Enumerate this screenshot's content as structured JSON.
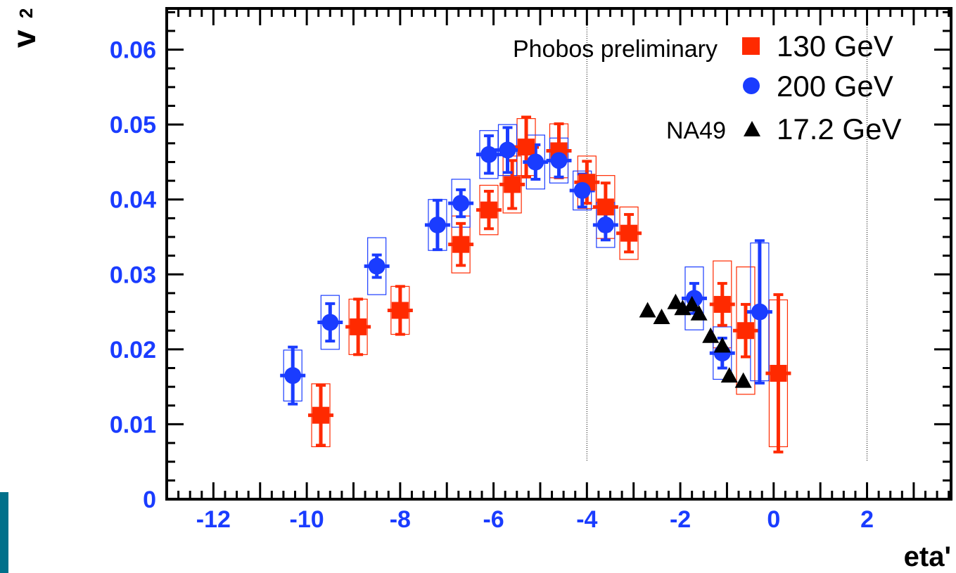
{
  "colors": {
    "series_130": "#ff2a00",
    "series_200": "#1a3cff",
    "series_na49": "#000000",
    "tick_labels": "#1a3cff",
    "side_bar": "#00708a"
  },
  "chart_data": {
    "type": "scatter",
    "xlabel": "eta'",
    "ylabel_main": "v",
    "ylabel_sub": "2",
    "xlim": [
      -13.0,
      3.8
    ],
    "ylim": [
      0,
      0.0655
    ],
    "x_ticks": [
      -12,
      -10,
      -8,
      -6,
      -4,
      -2,
      0,
      2
    ],
    "x_tick_labels": [
      "-12",
      "-10",
      "-8",
      "-6",
      "-4",
      "-2",
      "0",
      "2"
    ],
    "y_ticks": [
      0,
      0.01,
      0.02,
      0.03,
      0.04,
      0.05,
      0.06
    ],
    "y_tick_labels": [
      "0",
      "0.01",
      "0.02",
      "0.03",
      "0.04",
      "0.05",
      "0.06"
    ],
    "reference_lines_x": [
      -4,
      2
    ],
    "legend_placement": "top-right",
    "annotations": {
      "phobos": "Phobos preliminary",
      "na49": "NA49"
    },
    "series": [
      {
        "name": "130 GeV",
        "marker": "square",
        "points": [
          {
            "x": -9.7,
            "y": 0.0112,
            "err": 0.004,
            "sys": 0.0042
          },
          {
            "x": -8.9,
            "y": 0.023,
            "err": 0.0037,
            "sys": 0.0037
          },
          {
            "x": -8.0,
            "y": 0.0252,
            "err": 0.0032,
            "sys": 0.0032
          },
          {
            "x": -6.7,
            "y": 0.034,
            "err": 0.0028,
            "sys": 0.0038
          },
          {
            "x": -6.1,
            "y": 0.0386,
            "err": 0.0025,
            "sys": 0.0033
          },
          {
            "x": -5.6,
            "y": 0.042,
            "err": 0.0032,
            "sys": 0.0038
          },
          {
            "x": -5.3,
            "y": 0.047,
            "err": 0.004,
            "sys": 0.0038
          },
          {
            "x": -4.6,
            "y": 0.0465,
            "err": 0.0036,
            "sys": 0.0036
          },
          {
            "x": -4.0,
            "y": 0.0423,
            "err": 0.0028,
            "sys": 0.0035
          },
          {
            "x": -3.6,
            "y": 0.039,
            "err": 0.0032,
            "sys": 0.0042
          },
          {
            "x": -3.1,
            "y": 0.0355,
            "err": 0.0025,
            "sys": 0.0035
          },
          {
            "x": -1.1,
            "y": 0.026,
            "err": 0.0028,
            "sys": 0.0058
          },
          {
            "x": -0.6,
            "y": 0.0225,
            "err": 0.0035,
            "sys": 0.0085
          },
          {
            "x": 0.1,
            "y": 0.0168,
            "err": 0.0105,
            "sys": 0.0098
          }
        ]
      },
      {
        "name": "200 GeV",
        "marker": "circle",
        "points": [
          {
            "x": -10.3,
            "y": 0.0165,
            "err": 0.0038,
            "sys": 0.0034
          },
          {
            "x": -9.5,
            "y": 0.0236,
            "err": 0.0025,
            "sys": 0.0036
          },
          {
            "x": -8.5,
            "y": 0.0311,
            "err": 0.0015,
            "sys": 0.0038
          },
          {
            "x": -7.2,
            "y": 0.0366,
            "err": 0.0033,
            "sys": 0.0034
          },
          {
            "x": -6.7,
            "y": 0.0395,
            "err": 0.0018,
            "sys": 0.0032
          },
          {
            "x": -6.1,
            "y": 0.046,
            "err": 0.0025,
            "sys": 0.0032
          },
          {
            "x": -5.7,
            "y": 0.0466,
            "err": 0.003,
            "sys": 0.0034
          },
          {
            "x": -5.1,
            "y": 0.045,
            "err": 0.0023,
            "sys": 0.0036
          },
          {
            "x": -4.6,
            "y": 0.0452,
            "err": 0.0022,
            "sys": 0.003
          },
          {
            "x": -4.1,
            "y": 0.0412,
            "err": 0.0022,
            "sys": 0.0026
          },
          {
            "x": -3.6,
            "y": 0.0366,
            "err": 0.002,
            "sys": 0.003
          },
          {
            "x": -1.7,
            "y": 0.0268,
            "err": 0.002,
            "sys": 0.0042
          },
          {
            "x": -1.1,
            "y": 0.0195,
            "err": 0.002,
            "sys": 0.0035
          },
          {
            "x": -0.3,
            "y": 0.025,
            "err": 0.0095,
            "sys": 0.0092
          }
        ]
      },
      {
        "name": "17.2 GeV",
        "marker": "triangle",
        "points": [
          {
            "x": -2.7,
            "y": 0.0252
          },
          {
            "x": -2.4,
            "y": 0.0243
          },
          {
            "x": -2.1,
            "y": 0.0263
          },
          {
            "x": -1.95,
            "y": 0.0255
          },
          {
            "x": -1.75,
            "y": 0.026
          },
          {
            "x": -1.6,
            "y": 0.0248
          },
          {
            "x": -1.35,
            "y": 0.0218
          },
          {
            "x": -1.1,
            "y": 0.0205
          },
          {
            "x": -0.95,
            "y": 0.0165
          },
          {
            "x": -0.65,
            "y": 0.0158
          }
        ]
      }
    ]
  }
}
